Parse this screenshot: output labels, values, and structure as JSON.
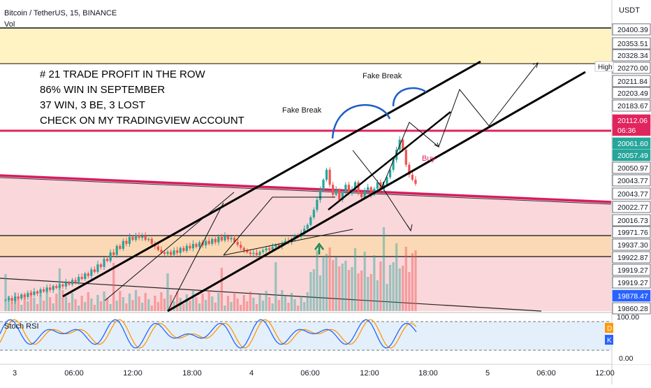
{
  "header": {
    "symbol_line": "Bitcoin / TetherUS, 15, BINANCE",
    "vol_label": "Vol",
    "currency": "USDT"
  },
  "annotation": {
    "lines": [
      "# 21 TRADE PROFIT IN THE ROW",
      "86% WIN IN SEPTEMBER",
      "37 WIN, 3 BE, 3 LOST",
      "CHECK ON MY TRADINGVIEW  ACCOUNT"
    ],
    "fake_break_1": "Fake Break",
    "fake_break_2": "Fake Break",
    "buy": "Buy"
  },
  "price_axis": {
    "labels": [
      {
        "text": "20400.39",
        "price": 20400.39,
        "style": "box"
      },
      {
        "text": "20353.51",
        "price": 20353.51,
        "style": "box"
      },
      {
        "text": "20328.34",
        "price": 20328.34,
        "style": "box"
      },
      {
        "text": "20270.00",
        "price": 20270.0,
        "style": "box"
      },
      {
        "text": "20211.84",
        "price": 20211.84,
        "style": "box"
      },
      {
        "text": "20203.49",
        "price": 20203.49,
        "style": "box"
      },
      {
        "text": "20183.67",
        "price": 20183.67,
        "style": "box"
      },
      {
        "text": "20112.06",
        "price": 20112.06,
        "style": "current"
      },
      {
        "text": "06:36",
        "price": 20094.0,
        "style": "current"
      },
      {
        "text": "20061.60",
        "price": 20061.6,
        "style": "teal"
      },
      {
        "text": "20057.49",
        "price": 20057.49,
        "style": "teal"
      },
      {
        "text": "20050.97",
        "price": 20050.97,
        "style": "box"
      },
      {
        "text": "20043.77",
        "price": 20043.77,
        "style": "box"
      },
      {
        "text": "20043.77",
        "price": 20043.77,
        "style": "box"
      },
      {
        "text": "20022.77",
        "price": 20022.77,
        "style": "box"
      },
      {
        "text": "20016.73",
        "price": 20016.73,
        "style": "box"
      },
      {
        "text": "19971.76",
        "price": 19971.76,
        "style": "box"
      },
      {
        "text": "19937.30",
        "price": 19937.3,
        "style": "box"
      },
      {
        "text": "19922.87",
        "price": 19922.87,
        "style": "box"
      },
      {
        "text": "19919.27",
        "price": 19919.27,
        "style": "box"
      },
      {
        "text": "19919.27",
        "price": 19919.27,
        "style": "box"
      },
      {
        "text": "19878.47",
        "price": 19878.47,
        "style": "blue"
      },
      {
        "text": "19860.28",
        "price": 19860.28,
        "style": "box"
      }
    ],
    "high_label": "High"
  },
  "time_axis": {
    "labels": [
      "3",
      "06:00",
      "12:00",
      "18:00",
      "4",
      "06:00",
      "12:00",
      "18:00",
      "5",
      "06:00",
      "12:00"
    ]
  },
  "stoch": {
    "label": "Stoch RSI",
    "top": "100.00",
    "bottom": "0.00",
    "d_label": "D",
    "k_label": "K"
  },
  "colors": {
    "up": "#26a69a",
    "down": "#ef5350",
    "red_line": "#e0245e",
    "yellow_zone": "#fff3c4",
    "orange_zone": "#fcd9b6",
    "pink_zone": "#f8d0d4",
    "stoch_k": "#2962ff",
    "stoch_d": "#ff9800"
  },
  "chart_data": {
    "type": "candlestick",
    "title": "Bitcoin / TetherUS, 15, BINANCE",
    "ylim": [
      19855,
      20430
    ],
    "price_path": [
      19880,
      19884,
      19878,
      19887,
      19883,
      19891,
      19886,
      19894,
      19890,
      19897,
      19893,
      19901,
      19897,
      19905,
      19900,
      19908,
      19904,
      19911,
      19907,
      19915,
      19911,
      19920,
      19916,
      19926,
      19922,
      19933,
      19928,
      19941,
      19936,
      19951,
      19946,
      19962,
      19958,
      19975,
      19970,
      19988,
      19982,
      19998,
      19992,
      20006,
      20000,
      20010,
      20004,
      20008,
      20000,
      20002,
      19992,
      19987,
      19980,
      19975,
      19972,
      19976,
      19970,
      19979,
      19974,
      19984,
      19978,
      19988,
      19983,
      19992,
      19986,
      19995,
      19989,
      19998,
      19992,
      20002,
      19995,
      20006,
      19999,
      20008,
      20001,
      20004,
      19996,
      19990,
      19984,
      19979,
      19975,
      19972,
      19974,
      19970,
      19976,
      19979,
      19983,
      19980,
      19986,
      19990,
      19987,
      19993,
      19998,
      19995,
      20002,
      20008,
      20006,
      20014,
      20022,
      20030,
      20045,
      20060,
      20080,
      20100,
      20120,
      20140,
      20110,
      20090,
      20100,
      20080,
      20095,
      20110,
      20092,
      20100,
      20115,
      20095,
      20085,
      20098,
      20105,
      20090,
      20102,
      20115,
      20100,
      20110,
      20125,
      20140,
      20160,
      20180,
      20200,
      20180,
      20150,
      20130,
      20120,
      20112
    ]
  }
}
